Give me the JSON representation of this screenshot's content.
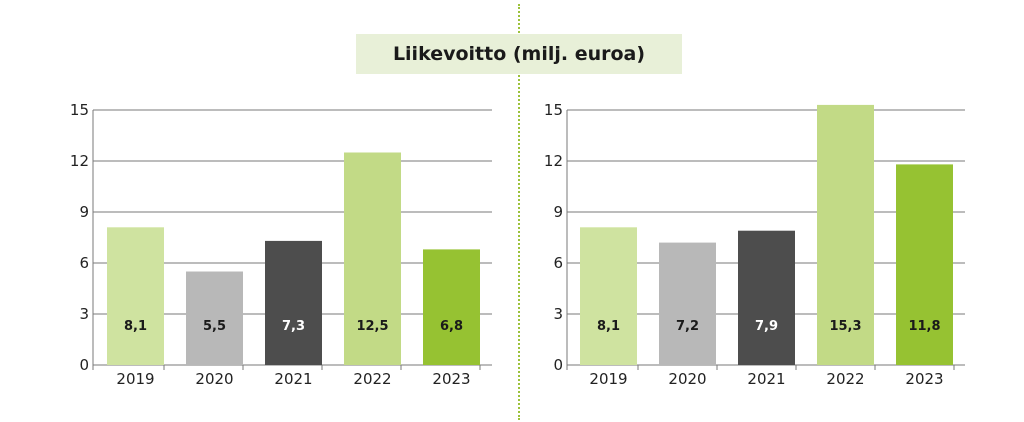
{
  "title": "Liikevoitto (milj. euroa)",
  "chart_data": [
    {
      "type": "bar",
      "categories": [
        "2019",
        "2020",
        "2021",
        "2022",
        "2023"
      ],
      "values": [
        8.1,
        5.5,
        7.3,
        12.5,
        6.8
      ],
      "value_labels": [
        "8,1",
        "5,5",
        "7,3",
        "12,5",
        "6,8"
      ],
      "bar_colors": [
        "#cfe3a0",
        "#b8b8b8",
        "#4d4d4d",
        "#c2da86",
        "#96c232"
      ],
      "label_colors": [
        "#1a1a1a",
        "#1a1a1a",
        "#ffffff",
        "#1a1a1a",
        "#1a1a1a"
      ],
      "yticks": [
        "0",
        "3",
        "6",
        "9",
        "12",
        "15"
      ],
      "ylim": [
        0,
        15
      ],
      "grid": true
    },
    {
      "type": "bar",
      "categories": [
        "2019",
        "2020",
        "2021",
        "2022",
        "2023"
      ],
      "values": [
        8.1,
        7.2,
        7.9,
        15.3,
        11.8
      ],
      "value_labels": [
        "8,1",
        "7,2",
        "7,9",
        "15,3",
        "11,8"
      ],
      "bar_colors": [
        "#cfe3a0",
        "#b8b8b8",
        "#4d4d4d",
        "#c2da86",
        "#96c232"
      ],
      "label_colors": [
        "#1a1a1a",
        "#1a1a1a",
        "#ffffff",
        "#1a1a1a",
        "#1a1a1a"
      ],
      "yticks": [
        "0",
        "3",
        "6",
        "9",
        "12",
        "15"
      ],
      "ylim": [
        0,
        15
      ],
      "grid": true
    }
  ]
}
